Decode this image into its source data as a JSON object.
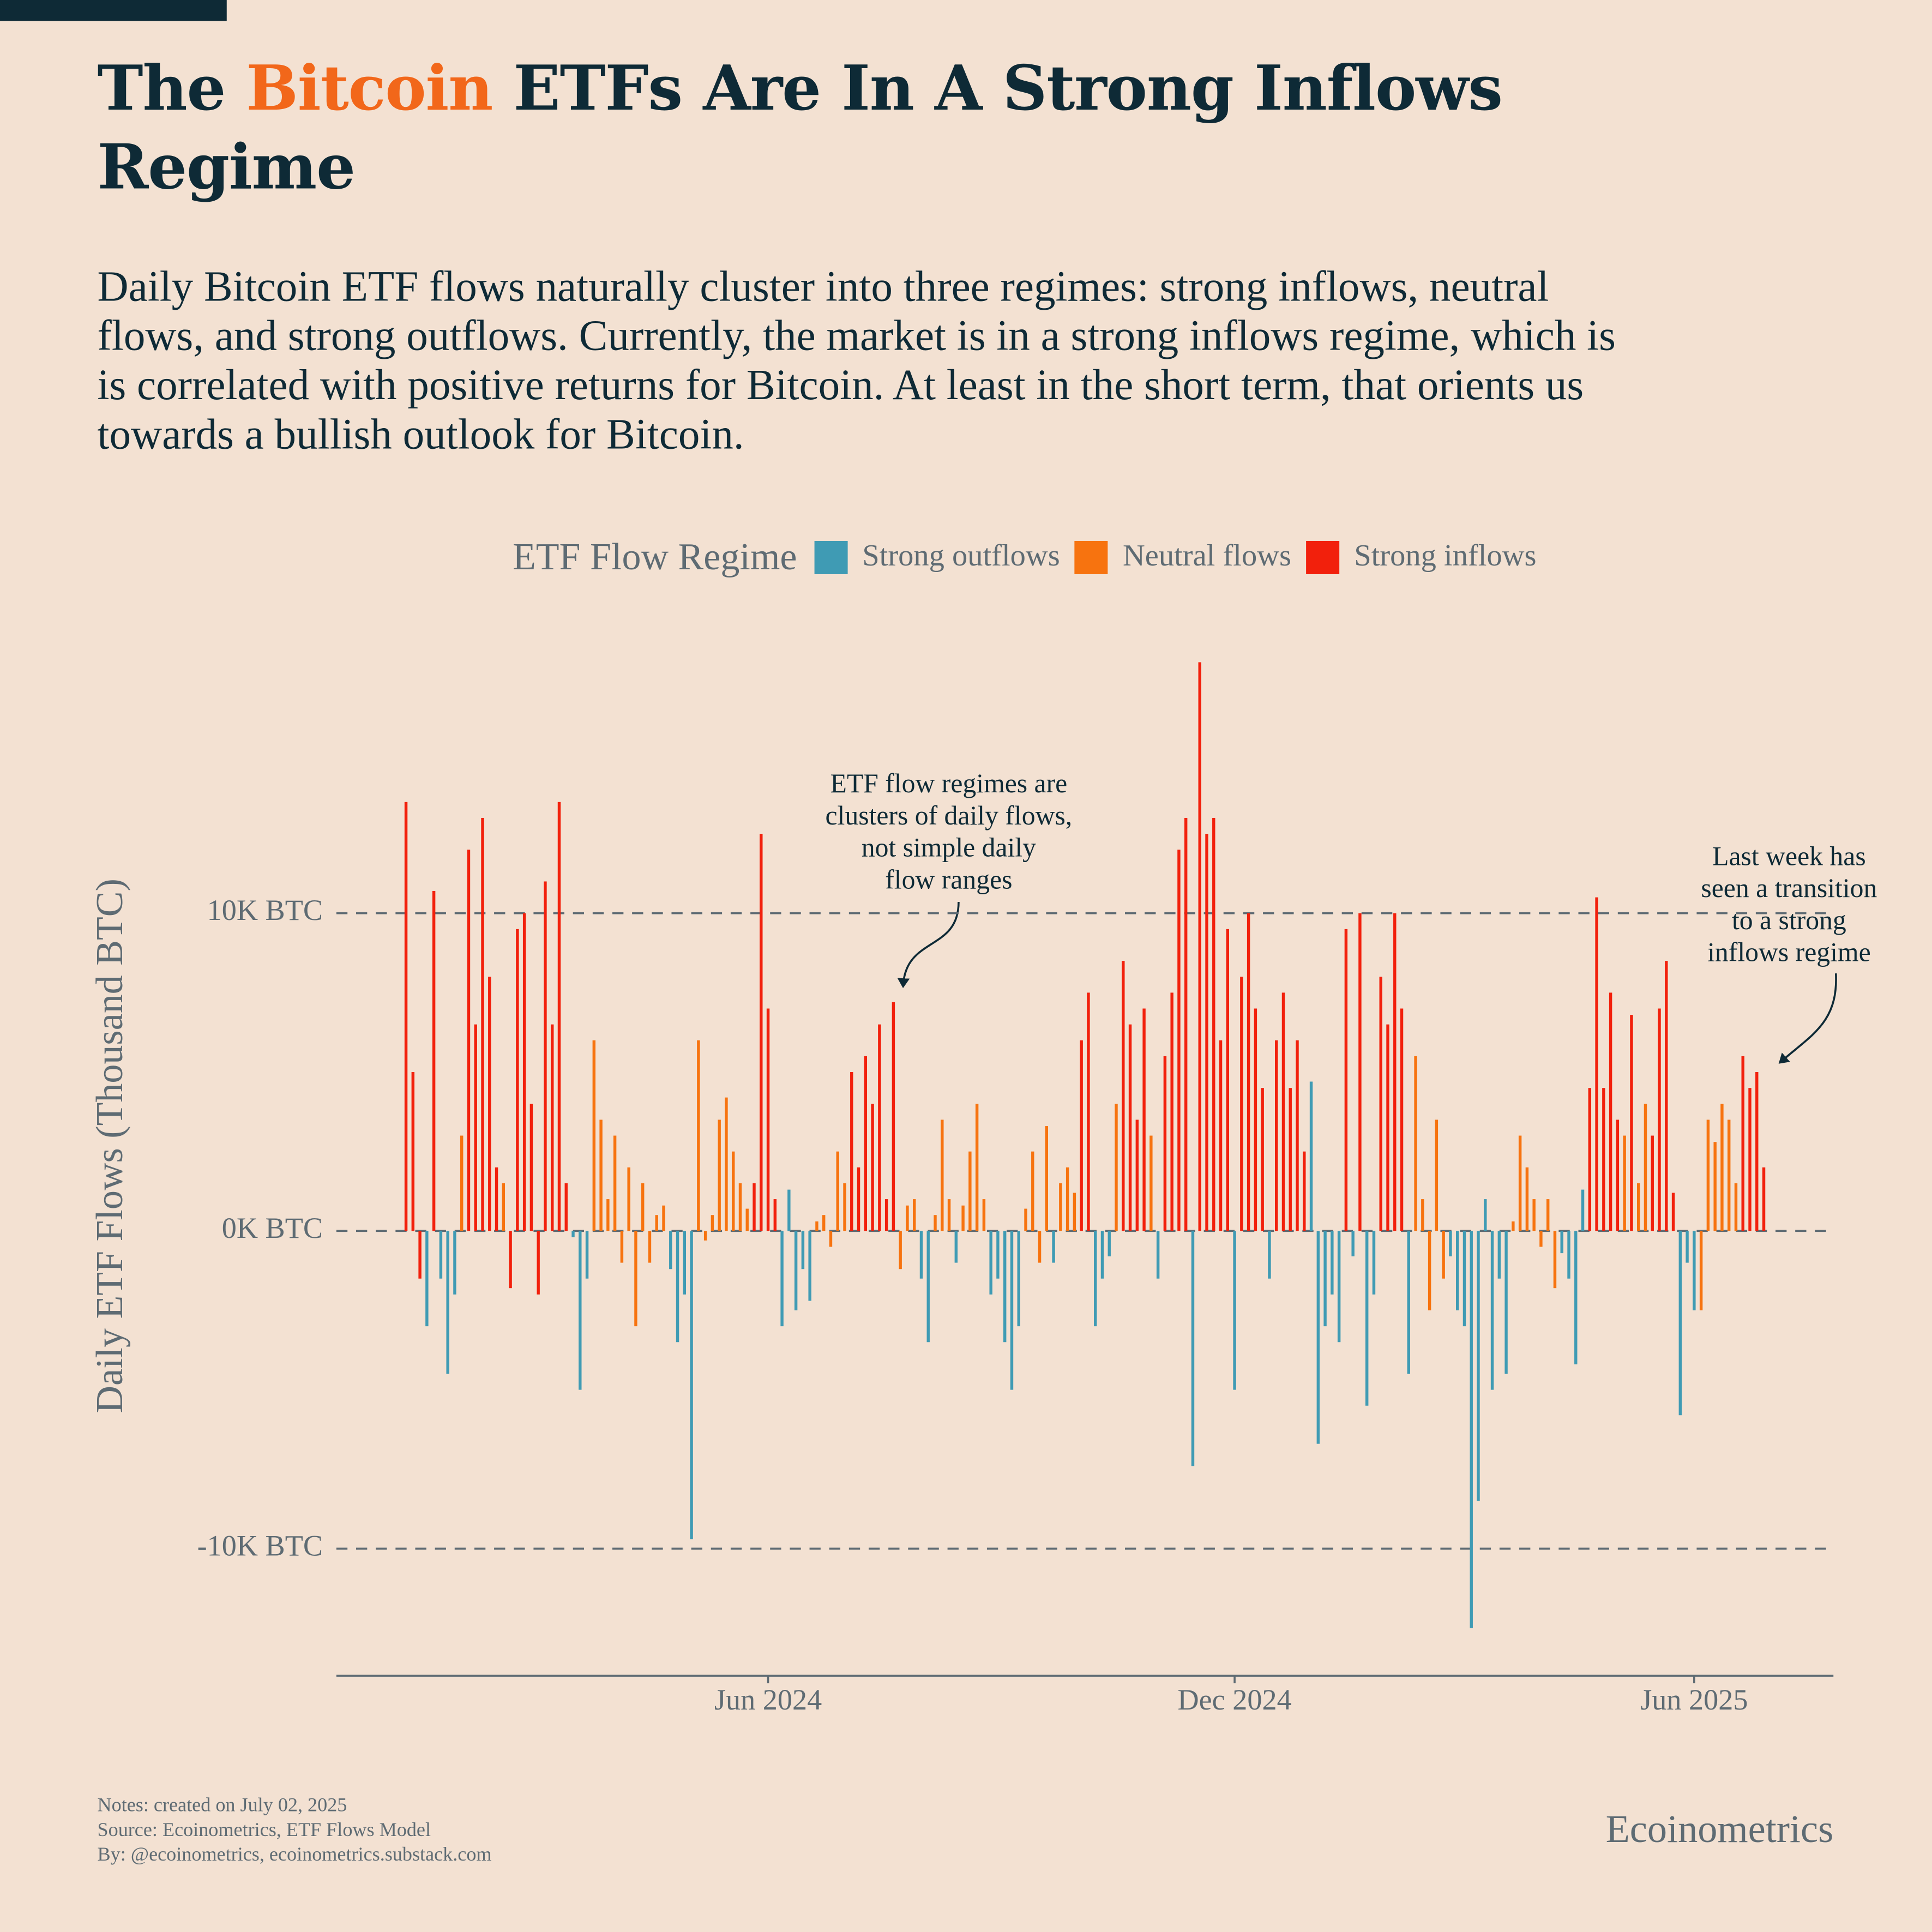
{
  "chart_data": {
    "type": "bar",
    "title": [
      "The ",
      "Bitcoin",
      " ETFs Are In A Strong Inflows",
      "Regime"
    ],
    "subtitle": "Daily Bitcoin ETF flows naturally cluster into three regimes: strong inflows, neutral flows, and strong outflows. Currently, the market is in a strong inflows regime, which is is correlated with positive returns for Bitcoin. At least in the short term, that orients us towards a bullish outlook for Bitcoin.",
    "legend_title": "ETF Flow Regime",
    "y_label": "Daily ETF Flows (Thousand BTC)",
    "ylim": [
      -14,
      18.5
    ],
    "yticks": [
      {
        "value": -10,
        "label": "-10K BTC"
      },
      {
        "value": 0,
        "label": "0K BTC"
      },
      {
        "value": 10,
        "label": "10K BTC"
      }
    ],
    "grid": true,
    "xlim": [
      -10,
      205
    ],
    "xticks": [
      {
        "value": 52,
        "label": "Jun 2024"
      },
      {
        "value": 119,
        "label": "Dec 2024"
      },
      {
        "value": 185,
        "label": "Jun 2025"
      }
    ],
    "categories": [
      null,
      null,
      null,
      null,
      null,
      null,
      null,
      null,
      null,
      null,
      null,
      null,
      null,
      null,
      null,
      null,
      null,
      null,
      null,
      null,
      null,
      null,
      null,
      null,
      null,
      null,
      null,
      null,
      null,
      null,
      null,
      null,
      null,
      null,
      null,
      null,
      null,
      null,
      null,
      null,
      null,
      null,
      null,
      null,
      null,
      null,
      null,
      null,
      null,
      null,
      null,
      null,
      null,
      null,
      null,
      null,
      null,
      null,
      null,
      null,
      null,
      null,
      null,
      null,
      null,
      null,
      null,
      null,
      null,
      null,
      null,
      null,
      null,
      null,
      null,
      null,
      null,
      null,
      null,
      null,
      null,
      null,
      null,
      null,
      null,
      null,
      null,
      null,
      null,
      null,
      null,
      null,
      null,
      null,
      null,
      null,
      null,
      null,
      null,
      null,
      null,
      null,
      null,
      null,
      null,
      null,
      null,
      null,
      null,
      null,
      null,
      null,
      null,
      null,
      null,
      null,
      null,
      null,
      null,
      null,
      null,
      null,
      null,
      null,
      null,
      null,
      null,
      null,
      null,
      null,
      null,
      null,
      null,
      null,
      null,
      null,
      null,
      null,
      null,
      null,
      null,
      null,
      null,
      null,
      null,
      null,
      null,
      null,
      null,
      null,
      null,
      null,
      null,
      null,
      null,
      null,
      null,
      null,
      null,
      null,
      null,
      null,
      null,
      null,
      null,
      null,
      null,
      null,
      null,
      null,
      null,
      null,
      null,
      null,
      null,
      null,
      null,
      null,
      null,
      null,
      null,
      null,
      null,
      null,
      null,
      null,
      null,
      null,
      null,
      null,
      null,
      null,
      null,
      null,
      null,
      null
    ],
    "series": [
      {
        "name": "Strong outflows",
        "color": "#3f9bb4",
        "values": [
          null,
          null,
          null,
          -3,
          null,
          -1.5,
          -4.5,
          -2,
          null,
          null,
          null,
          null,
          null,
          null,
          null,
          null,
          null,
          null,
          null,
          null,
          null,
          null,
          null,
          null,
          -0.2,
          -5,
          -1.5,
          null,
          null,
          null,
          null,
          null,
          null,
          null,
          null,
          null,
          null,
          null,
          -1.2,
          -3.5,
          -2,
          -9.7,
          null,
          null,
          null,
          null,
          null,
          null,
          null,
          null,
          null,
          null,
          null,
          null,
          -3,
          1.3,
          -2.5,
          -1.2,
          -2.2,
          null,
          null,
          null,
          null,
          null,
          null,
          null,
          null,
          null,
          null,
          null,
          null,
          null,
          null,
          null,
          -1.5,
          -3.5,
          null,
          null,
          null,
          -1,
          null,
          null,
          null,
          null,
          -2,
          -1.5,
          -3.5,
          -5,
          -3,
          null,
          null,
          null,
          null,
          -1,
          null,
          null,
          null,
          null,
          null,
          -3,
          -1.5,
          -0.8,
          null,
          null,
          null,
          null,
          null,
          null,
          -1.5,
          null,
          null,
          null,
          null,
          -7.4,
          null,
          null,
          null,
          null,
          null,
          -5,
          null,
          null,
          null,
          null,
          -1.5,
          null,
          null,
          null,
          null,
          null,
          4.7,
          -6.7,
          -3,
          -2,
          -3.5,
          null,
          -0.8,
          null,
          -5.5,
          -2,
          null,
          null,
          null,
          null,
          -4.5,
          null,
          null,
          null,
          null,
          null,
          -0.8,
          -2.5,
          -3,
          -12.5,
          -8.5,
          1,
          -5,
          -1.5,
          -4.5,
          null,
          null,
          null,
          null,
          null,
          null,
          null,
          -0.7,
          -1.5,
          -4.2,
          1.3,
          null,
          null,
          null,
          null,
          null,
          null,
          null,
          null,
          null,
          null,
          null,
          null,
          null,
          -5.8,
          -1,
          -2.5,
          null,
          null,
          null,
          null,
          null,
          null,
          null,
          null,
          null,
          null
        ]
      },
      {
        "name": "Neutral flows",
        "color": "#f7730f",
        "values": [
          null,
          null,
          null,
          null,
          null,
          null,
          null,
          null,
          3,
          null,
          null,
          null,
          null,
          null,
          1.5,
          null,
          null,
          null,
          null,
          null,
          null,
          null,
          null,
          null,
          null,
          null,
          null,
          6,
          3.5,
          1,
          3,
          -1,
          2,
          -3,
          1.5,
          -1,
          0.5,
          0.8,
          null,
          null,
          null,
          null,
          6,
          -0.3,
          0.5,
          3.5,
          4.2,
          2.5,
          1.5,
          0.7,
          null,
          null,
          null,
          null,
          null,
          null,
          null,
          null,
          null,
          0.3,
          0.5,
          -0.5,
          2.5,
          1.5,
          null,
          null,
          null,
          null,
          null,
          null,
          null,
          -1.2,
          0.8,
          1,
          null,
          null,
          0.5,
          3.5,
          1,
          null,
          0.8,
          2.5,
          4,
          1,
          null,
          null,
          null,
          null,
          null,
          0.7,
          2.5,
          -1,
          3.3,
          null,
          1.5,
          2,
          1.2,
          null,
          null,
          null,
          null,
          null,
          4,
          null,
          null,
          null,
          null,
          3,
          null,
          null,
          null,
          null,
          null,
          null,
          null,
          null,
          null,
          null,
          null,
          null,
          null,
          null,
          null,
          null,
          null,
          null,
          null,
          null,
          null,
          null,
          null,
          null,
          null,
          null,
          null,
          null,
          null,
          null,
          null,
          null,
          null,
          null,
          null,
          null,
          null,
          5.5,
          1,
          -2.5,
          3.5,
          -1.5,
          null,
          null,
          null,
          null,
          null,
          null,
          null,
          null,
          null,
          0.3,
          3,
          2,
          1,
          -0.5,
          1,
          -1.8,
          null,
          null,
          null,
          null,
          null,
          null,
          null,
          null,
          null,
          3,
          null,
          1.5,
          4,
          null,
          null,
          null,
          null,
          null,
          null,
          null,
          -2.5,
          3.5,
          2.8,
          4,
          3.5,
          1.5,
          null,
          null,
          null,
          null
        ]
      },
      {
        "name": "Strong inflows",
        "color": "#f2200c",
        "values": [
          13.5,
          5,
          -1.5,
          null,
          10.7,
          null,
          null,
          null,
          null,
          12,
          6.5,
          13,
          8,
          2,
          null,
          -1.8,
          9.5,
          10,
          4,
          -2,
          11,
          6.5,
          13.5,
          1.5,
          null,
          null,
          null,
          null,
          null,
          null,
          null,
          null,
          null,
          null,
          null,
          null,
          null,
          null,
          null,
          null,
          null,
          null,
          null,
          null,
          null,
          null,
          null,
          null,
          null,
          null,
          1.5,
          12.5,
          7,
          1,
          null,
          null,
          null,
          null,
          null,
          null,
          null,
          null,
          null,
          null,
          5,
          2,
          5.5,
          4,
          6.5,
          1,
          7.2,
          null,
          null,
          null,
          null,
          null,
          null,
          null,
          null,
          null,
          null,
          null,
          null,
          null,
          null,
          null,
          null,
          null,
          null,
          null,
          null,
          null,
          null,
          null,
          null,
          null,
          null,
          6,
          7.5,
          null,
          null,
          null,
          null,
          8.5,
          6.5,
          3.5,
          7,
          null,
          null,
          5.5,
          7.5,
          12,
          13,
          null,
          17.9,
          12.5,
          13,
          6,
          9.5,
          null,
          8,
          10,
          7,
          4.5,
          null,
          6,
          7.5,
          4.5,
          6,
          2.5,
          null,
          null,
          null,
          null,
          null,
          9.5,
          null,
          10,
          null,
          null,
          8,
          6.5,
          10,
          7,
          null,
          null,
          null,
          null,
          null,
          null,
          null,
          null,
          null,
          null,
          null,
          null,
          null,
          null,
          null,
          null,
          null,
          null,
          null,
          null,
          null,
          null,
          null,
          null,
          null,
          null,
          4.5,
          10.5,
          4.5,
          7.5,
          3.5,
          null,
          6.8,
          null,
          null,
          3,
          7,
          8.5,
          1.2,
          null,
          null,
          null,
          null,
          null,
          null,
          null,
          null,
          null,
          5.5,
          4.5,
          5,
          2
        ]
      }
    ],
    "annotations": [
      {
        "lines": [
          "ETF flow regimes are",
          "clusters of daily flows,",
          "not simple daily",
          "flow ranges"
        ]
      },
      {
        "lines": [
          "Last week has",
          "seen a transition",
          "to a strong",
          "inflows regime"
        ]
      }
    ],
    "notes": [
      "Notes: created on July 02, 2025",
      "Source: Ecoinometrics, ETF Flows Model",
      "By: @ecoinometrics, ecoinometrics.substack.com"
    ],
    "brand": "Ecoinometrics"
  }
}
